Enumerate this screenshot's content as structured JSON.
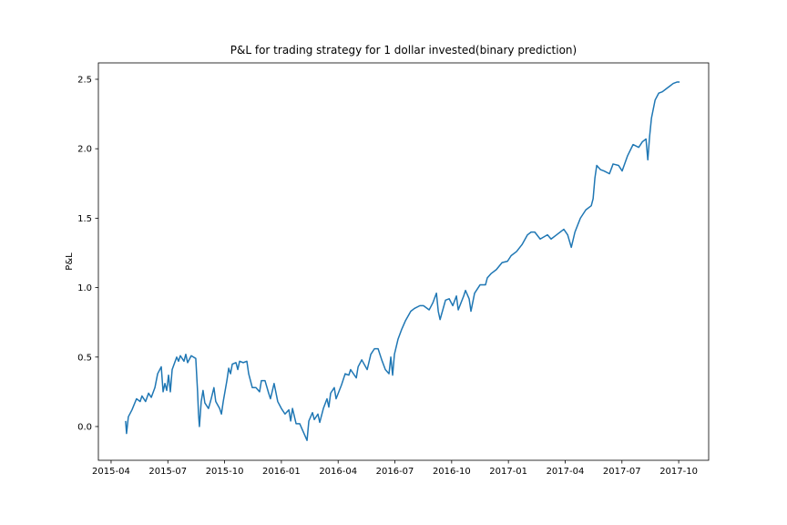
{
  "chart_data": {
    "type": "line",
    "title": "P&L for trading strategy for 1 dollar invested(binary prediction)",
    "y_label": "P&L",
    "x": [
      2015.314,
      2015.318,
      2015.326,
      2015.342,
      2015.362,
      2015.378,
      2015.386,
      2015.402,
      2015.415,
      2015.427,
      2015.443,
      2015.455,
      2015.471,
      2015.479,
      2015.487,
      2015.495,
      2015.503,
      2015.511,
      2015.519,
      2015.539,
      2015.547,
      2015.555,
      2015.571,
      2015.579,
      2015.587,
      2015.603,
      2015.623,
      2015.631,
      2015.635,
      2015.639,
      2015.647,
      2015.655,
      2015.663,
      2015.679,
      2015.691,
      2015.703,
      2015.711,
      2015.728,
      2015.736,
      2015.744,
      2015.76,
      2015.768,
      2015.776,
      2015.784,
      2015.8,
      2015.808,
      2015.816,
      2015.832,
      2015.848,
      2015.856,
      2015.872,
      2015.888,
      2015.904,
      2015.912,
      2015.928,
      2015.944,
      2015.952,
      2015.968,
      2015.984,
      2016.0,
      2016.016,
      2016.033,
      2016.041,
      2016.049,
      2016.065,
      2016.081,
      2016.097,
      2016.113,
      2016.121,
      2016.137,
      2016.145,
      2016.161,
      2016.169,
      2016.185,
      2016.201,
      2016.209,
      2016.217,
      2016.233,
      2016.241,
      2016.265,
      2016.281,
      2016.297,
      2016.305,
      2016.33,
      2016.338,
      2016.354,
      2016.378,
      2016.394,
      2016.41,
      2016.426,
      2016.442,
      2016.458,
      2016.474,
      2016.482,
      2016.49,
      2016.498,
      2016.514,
      2016.53,
      2016.546,
      2016.57,
      2016.586,
      2016.61,
      2016.626,
      2016.651,
      2016.667,
      2016.683,
      2016.691,
      2016.699,
      2016.723,
      2016.739,
      2016.755,
      2016.771,
      2016.779,
      2016.803,
      2016.811,
      2016.827,
      2016.835,
      2016.851,
      2016.875,
      2016.899,
      2016.907,
      2016.923,
      2016.947,
      2016.972,
      2016.996,
      2017.012,
      2017.036,
      2017.06,
      2017.084,
      2017.1,
      2017.116,
      2017.14,
      2017.172,
      2017.188,
      2017.212,
      2017.244,
      2017.261,
      2017.277,
      2017.293,
      2017.317,
      2017.341,
      2017.365,
      2017.373,
      2017.381,
      2017.389,
      2017.405,
      2017.421,
      2017.445,
      2017.461,
      2017.485,
      2017.501,
      2017.525,
      2017.549,
      2017.574,
      2017.59,
      2017.606,
      2017.614,
      2017.622,
      2017.63,
      2017.646,
      2017.662,
      2017.678,
      2017.694,
      2017.71,
      2017.726,
      2017.742,
      2017.754
    ],
    "series": [
      {
        "color": "#1f77b4",
        "values": [
          0.04,
          -0.05,
          0.07,
          0.12,
          0.2,
          0.18,
          0.22,
          0.18,
          0.24,
          0.21,
          0.28,
          0.38,
          0.43,
          0.25,
          0.31,
          0.26,
          0.37,
          0.25,
          0.41,
          0.5,
          0.47,
          0.51,
          0.47,
          0.52,
          0.46,
          0.51,
          0.49,
          0.25,
          0.09,
          0.0,
          0.18,
          0.26,
          0.17,
          0.13,
          0.2,
          0.28,
          0.18,
          0.13,
          0.09,
          0.18,
          0.33,
          0.42,
          0.38,
          0.45,
          0.46,
          0.41,
          0.47,
          0.46,
          0.47,
          0.38,
          0.28,
          0.28,
          0.25,
          0.33,
          0.33,
          0.24,
          0.2,
          0.31,
          0.18,
          0.13,
          0.09,
          0.12,
          0.04,
          0.13,
          0.02,
          0.02,
          -0.04,
          -0.1,
          0.04,
          0.1,
          0.05,
          0.09,
          0.03,
          0.13,
          0.2,
          0.14,
          0.24,
          0.28,
          0.2,
          0.3,
          0.38,
          0.37,
          0.41,
          0.35,
          0.43,
          0.48,
          0.41,
          0.52,
          0.56,
          0.56,
          0.48,
          0.41,
          0.38,
          0.5,
          0.37,
          0.52,
          0.63,
          0.7,
          0.76,
          0.83,
          0.85,
          0.87,
          0.87,
          0.84,
          0.89,
          0.96,
          0.83,
          0.77,
          0.91,
          0.92,
          0.87,
          0.94,
          0.84,
          0.94,
          0.98,
          0.92,
          0.83,
          0.96,
          1.02,
          1.02,
          1.07,
          1.1,
          1.13,
          1.18,
          1.19,
          1.23,
          1.26,
          1.31,
          1.38,
          1.4,
          1.4,
          1.35,
          1.38,
          1.35,
          1.38,
          1.42,
          1.38,
          1.29,
          1.4,
          1.5,
          1.56,
          1.59,
          1.64,
          1.79,
          1.88,
          1.85,
          1.84,
          1.82,
          1.89,
          1.88,
          1.84,
          1.95,
          2.03,
          2.01,
          2.05,
          2.07,
          1.92,
          2.09,
          2.22,
          2.35,
          2.4,
          2.41,
          2.43,
          2.45,
          2.47,
          2.48,
          2.48
        ]
      }
    ],
    "xlim": [
      2015.194,
      2017.882
    ],
    "xticks": [
      {
        "value": 2015.25,
        "label": "2015-04"
      },
      {
        "value": 2015.5,
        "label": "2015-07"
      },
      {
        "value": 2015.75,
        "label": "2015-10"
      },
      {
        "value": 2016.0,
        "label": "2016-01"
      },
      {
        "value": 2016.25,
        "label": "2016-04"
      },
      {
        "value": 2016.5,
        "label": "2016-07"
      },
      {
        "value": 2016.75,
        "label": "2016-10"
      },
      {
        "value": 2017.0,
        "label": "2017-01"
      },
      {
        "value": 2017.25,
        "label": "2017-04"
      },
      {
        "value": 2017.5,
        "label": "2017-07"
      },
      {
        "value": 2017.75,
        "label": "2017-10"
      }
    ],
    "ylim": [
      -0.243,
      2.618
    ],
    "yticks": [
      {
        "value": 0,
        "label": "0.0"
      },
      0.5,
      {
        "value": 1,
        "label": "1.0"
      },
      1.5,
      {
        "value": 2,
        "label": "2.0"
      },
      2.5
    ],
    "grid": false
  }
}
